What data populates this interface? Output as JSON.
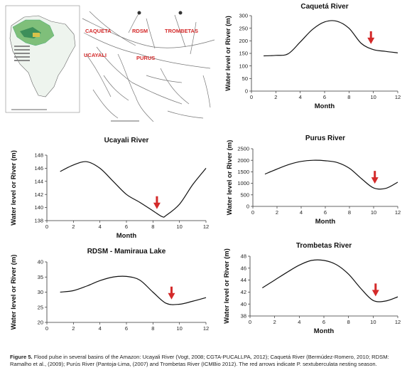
{
  "map": {
    "labels": [
      "CAQUETA",
      "RDSM",
      "TROMBETAS",
      "UCAYALI",
      "PURUS"
    ]
  },
  "caption": {
    "label": "Figure 5.",
    "text": "Flood pulse in several basins of the Amazon: Ucayali River (Vogt, 2008; CGTA-PUCALLPA, 2012); Caquetá River (Bermúdez-Romero, 2010; RDSM: Ramalho et al., (2009); Purús River (Pantoja-Lima, (2007) and Trombetas River (ICMBio 2012). The red arrows indicate P. sextuberculata nesting season."
  },
  "colors": {
    "line": "#111111",
    "arrow": "#d42a2a",
    "map_label": "#d42a2a"
  },
  "chart_data": [
    {
      "id": "caqueta",
      "type": "line",
      "title": "Caquetá River",
      "xlabel": "Month",
      "ylabel": "Water level or River (m)",
      "xlim": [
        0,
        12
      ],
      "ylim": [
        0,
        300
      ],
      "xticks": [
        0,
        2,
        4,
        6,
        8,
        10,
        12
      ],
      "yticks": [
        0,
        50,
        100,
        150,
        200,
        250,
        300
      ],
      "x": [
        1,
        2,
        3,
        4,
        5,
        6,
        7,
        8,
        9,
        10,
        11,
        12
      ],
      "values": [
        140,
        142,
        148,
        195,
        245,
        275,
        278,
        250,
        190,
        165,
        158,
        152
      ],
      "arrow_x": 9.8
    },
    {
      "id": "ucayali",
      "type": "line",
      "title": "Ucayali River",
      "xlabel": "Month",
      "ylabel": "Water level or River (m)",
      "xlim": [
        0,
        12
      ],
      "ylim": [
        138,
        148
      ],
      "xticks": [
        0,
        2,
        4,
        6,
        8,
        10,
        12
      ],
      "yticks": [
        138,
        140,
        142,
        144,
        146,
        148
      ],
      "x": [
        1,
        2,
        3,
        4,
        5,
        6,
        7,
        8,
        8.7,
        9,
        10,
        11,
        12
      ],
      "values": [
        145.5,
        146.5,
        147,
        146,
        144,
        142,
        140.8,
        139.5,
        138.6,
        138.8,
        140.5,
        143.5,
        146
      ],
      "arrow_x": 8.3
    },
    {
      "id": "purus",
      "type": "line",
      "title": "Purus River",
      "xlabel": "Month",
      "ylabel": "Water level or River (m)",
      "xlim": [
        0,
        12
      ],
      "ylim": [
        0,
        2500
      ],
      "xticks": [
        0,
        2,
        4,
        6,
        8,
        10,
        12
      ],
      "yticks": [
        0,
        500,
        1000,
        1500,
        2000,
        2500
      ],
      "x": [
        1,
        2,
        3,
        4,
        5,
        6,
        7,
        8,
        9,
        10,
        11,
        12
      ],
      "values": [
        1400,
        1620,
        1820,
        1950,
        2000,
        1980,
        1900,
        1650,
        1200,
        800,
        780,
        1050
      ],
      "arrow_x": 10.1
    },
    {
      "id": "rdsm",
      "type": "line",
      "title": "RDSM - Mamiraua Lake",
      "xlabel": "",
      "ylabel": "Water level or River (m)",
      "xlim": [
        0,
        12
      ],
      "ylim": [
        20,
        40
      ],
      "xticks": [
        0,
        2,
        4,
        6,
        8,
        10,
        12
      ],
      "yticks": [
        20,
        25,
        30,
        35,
        40
      ],
      "x": [
        1,
        2,
        3,
        4,
        5,
        6,
        7,
        8,
        9,
        10,
        11,
        12
      ],
      "values": [
        30,
        30.5,
        32,
        33.8,
        35,
        35.2,
        34,
        30,
        26.3,
        26,
        27,
        28.2
      ],
      "arrow_x": 9.4
    },
    {
      "id": "trombetas",
      "type": "line",
      "title": "Trombetas River",
      "xlabel": "Month",
      "ylabel": "Water level or River (m)",
      "xlim": [
        0,
        12
      ],
      "ylim": [
        38,
        48
      ],
      "xticks": [
        0,
        2,
        4,
        6,
        8,
        10,
        12
      ],
      "yticks": [
        38,
        40,
        42,
        44,
        46,
        48
      ],
      "x": [
        1,
        2,
        3,
        4,
        5,
        6,
        7,
        8,
        9,
        10,
        11,
        12
      ],
      "values": [
        42.7,
        44,
        45.3,
        46.5,
        47.3,
        47.3,
        46.6,
        45,
        42.6,
        40.6,
        40.5,
        41.2
      ],
      "arrow_x": 10.2
    }
  ]
}
